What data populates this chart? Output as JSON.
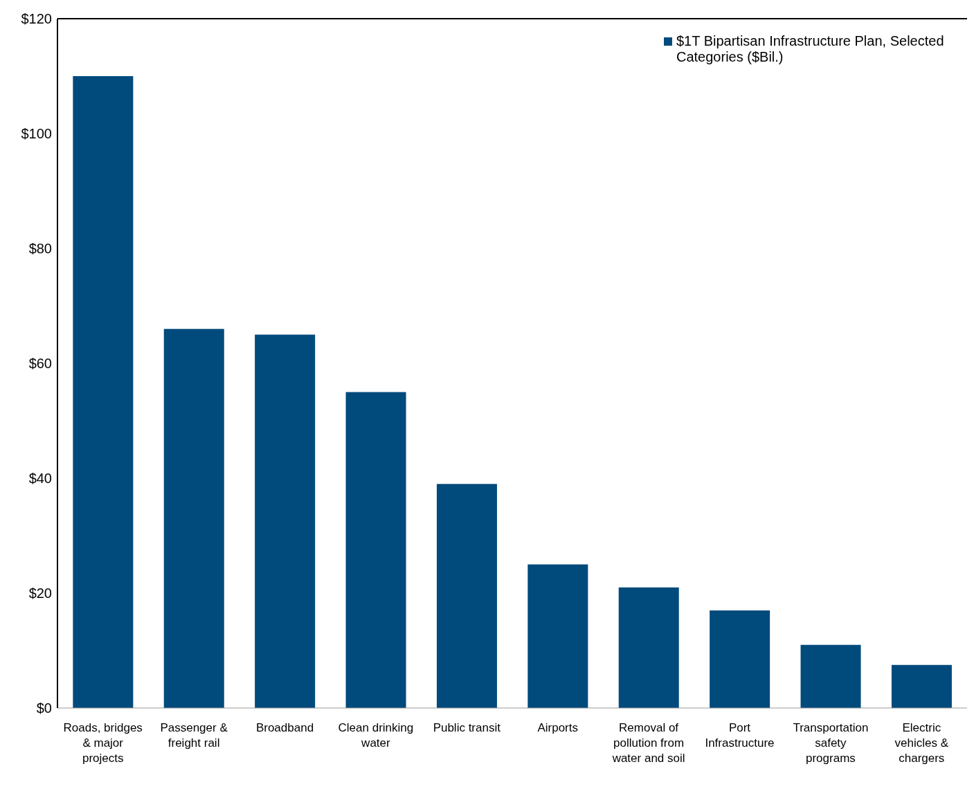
{
  "chart_data": {
    "type": "bar",
    "categories": [
      "Roads, bridges & major projects",
      "Passenger & freight rail",
      "Broadband",
      "Clean drinking water",
      "Public transit",
      "Airports",
      "Removal of pollution from water and soil",
      "Port Infrastructure",
      "Transportation safety programs",
      "Electric vehicles & chargers"
    ],
    "series": [
      {
        "name": "$1T Bipartisan Infrastructure Plan, Selected Categories ($Bil.)",
        "color": "#004a7c",
        "values": [
          110,
          66,
          65,
          55,
          39,
          25,
          21,
          17,
          11,
          7.5
        ]
      }
    ],
    "ylim": [
      0,
      120
    ],
    "yticks": [
      {
        "value": 0,
        "label": "$0"
      },
      {
        "value": 20,
        "label": "$20"
      },
      {
        "value": 40,
        "label": "$40"
      },
      {
        "value": 60,
        "label": "$60"
      },
      {
        "value": 80,
        "label": "$80"
      },
      {
        "value": 100,
        "label": "$100"
      },
      {
        "value": 120,
        "label": "$120"
      }
    ],
    "legend": "top right",
    "grid": false
  }
}
